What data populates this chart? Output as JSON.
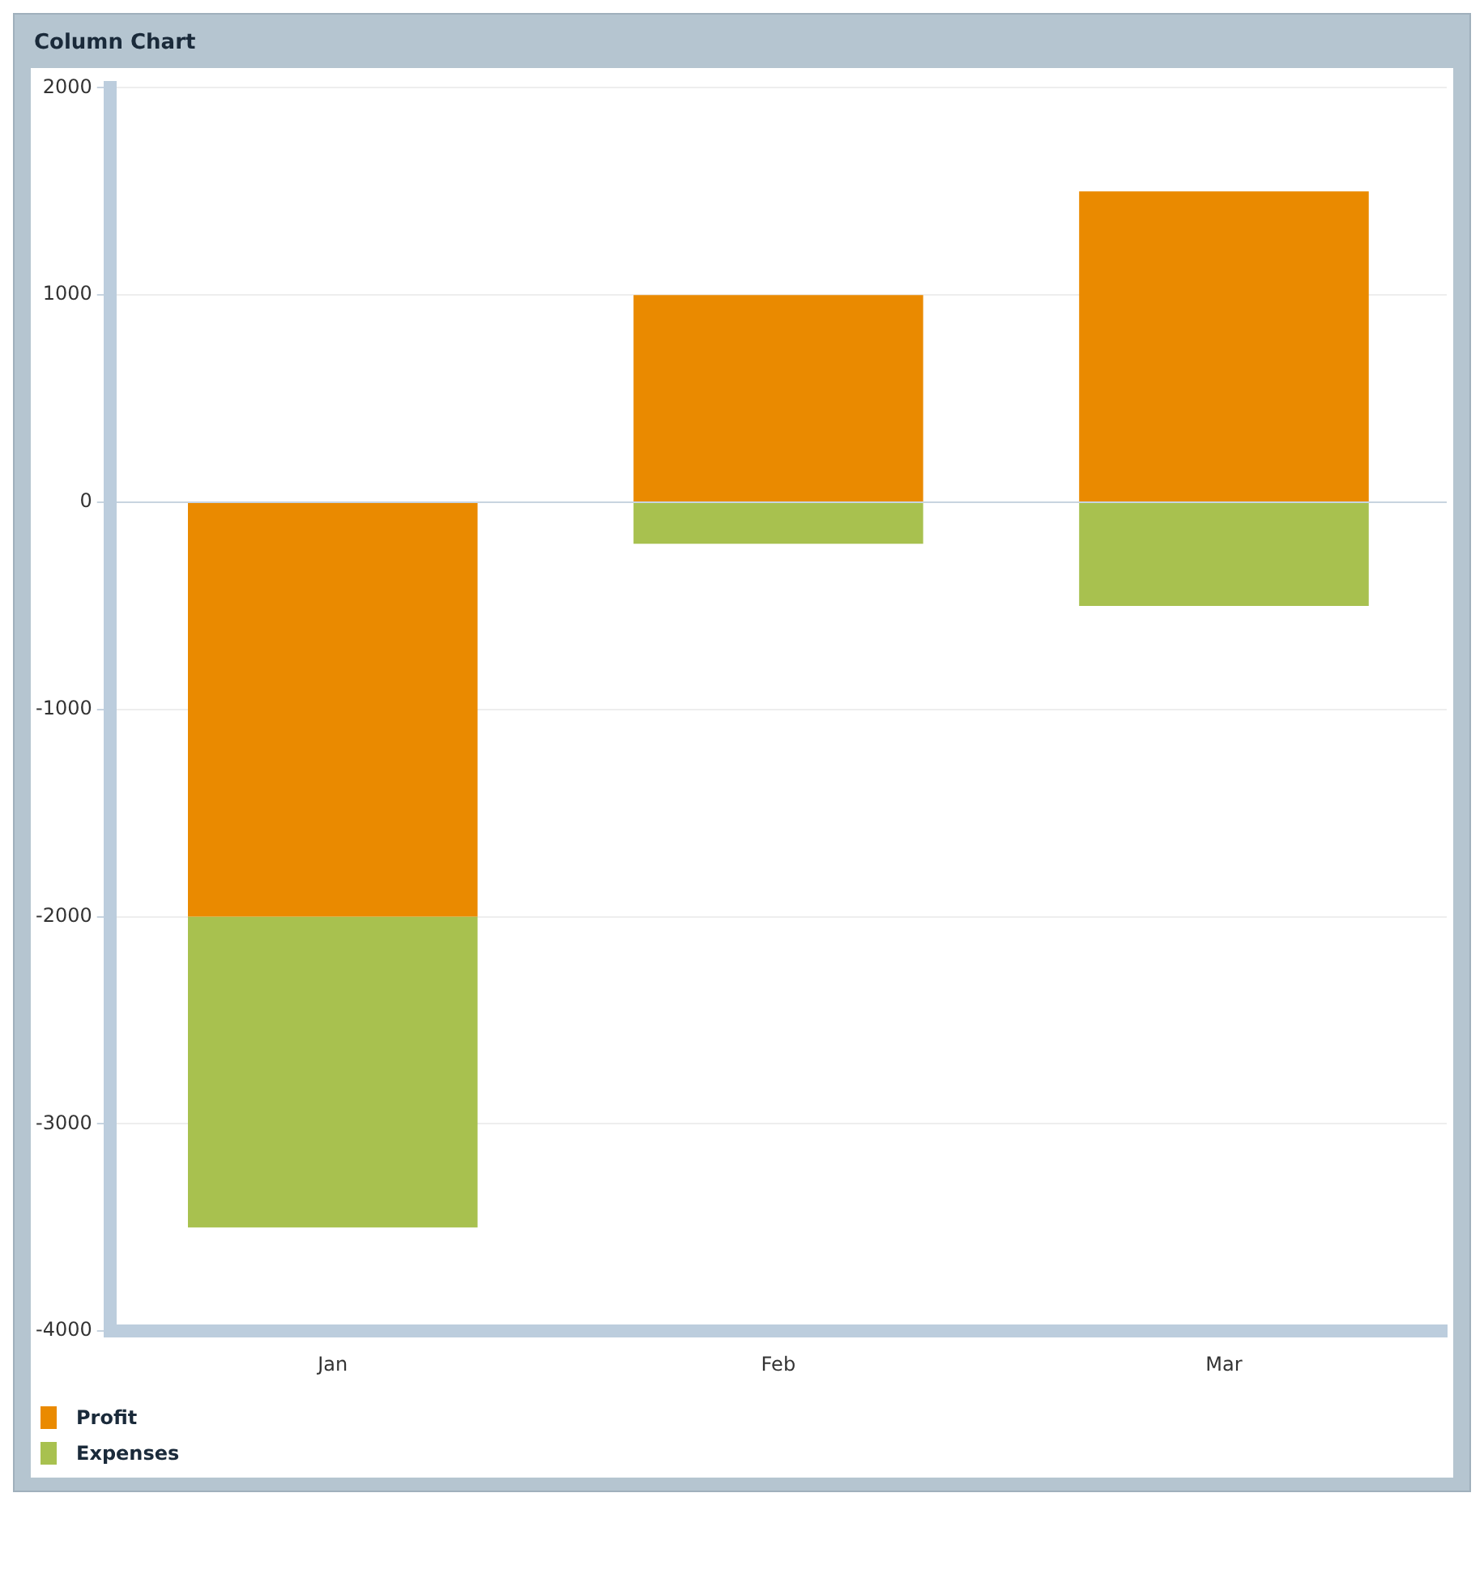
{
  "chart_data": {
    "type": "bar",
    "title": "Column Chart",
    "categories": [
      "Jan",
      "Feb",
      "Mar"
    ],
    "series": [
      {
        "name": "Profit",
        "color": "#ea8a00",
        "values": [
          -2000,
          1000,
          1500
        ]
      },
      {
        "name": "Expenses",
        "color": "#a8c14f",
        "values": [
          -1500,
          -200,
          -500
        ]
      }
    ],
    "stacked": true,
    "ylim": [
      -4000,
      2000
    ],
    "yticks": [
      -4000,
      -3000,
      -2000,
      -1000,
      0,
      1000,
      2000
    ],
    "grid": "y",
    "legend": "bottom"
  }
}
